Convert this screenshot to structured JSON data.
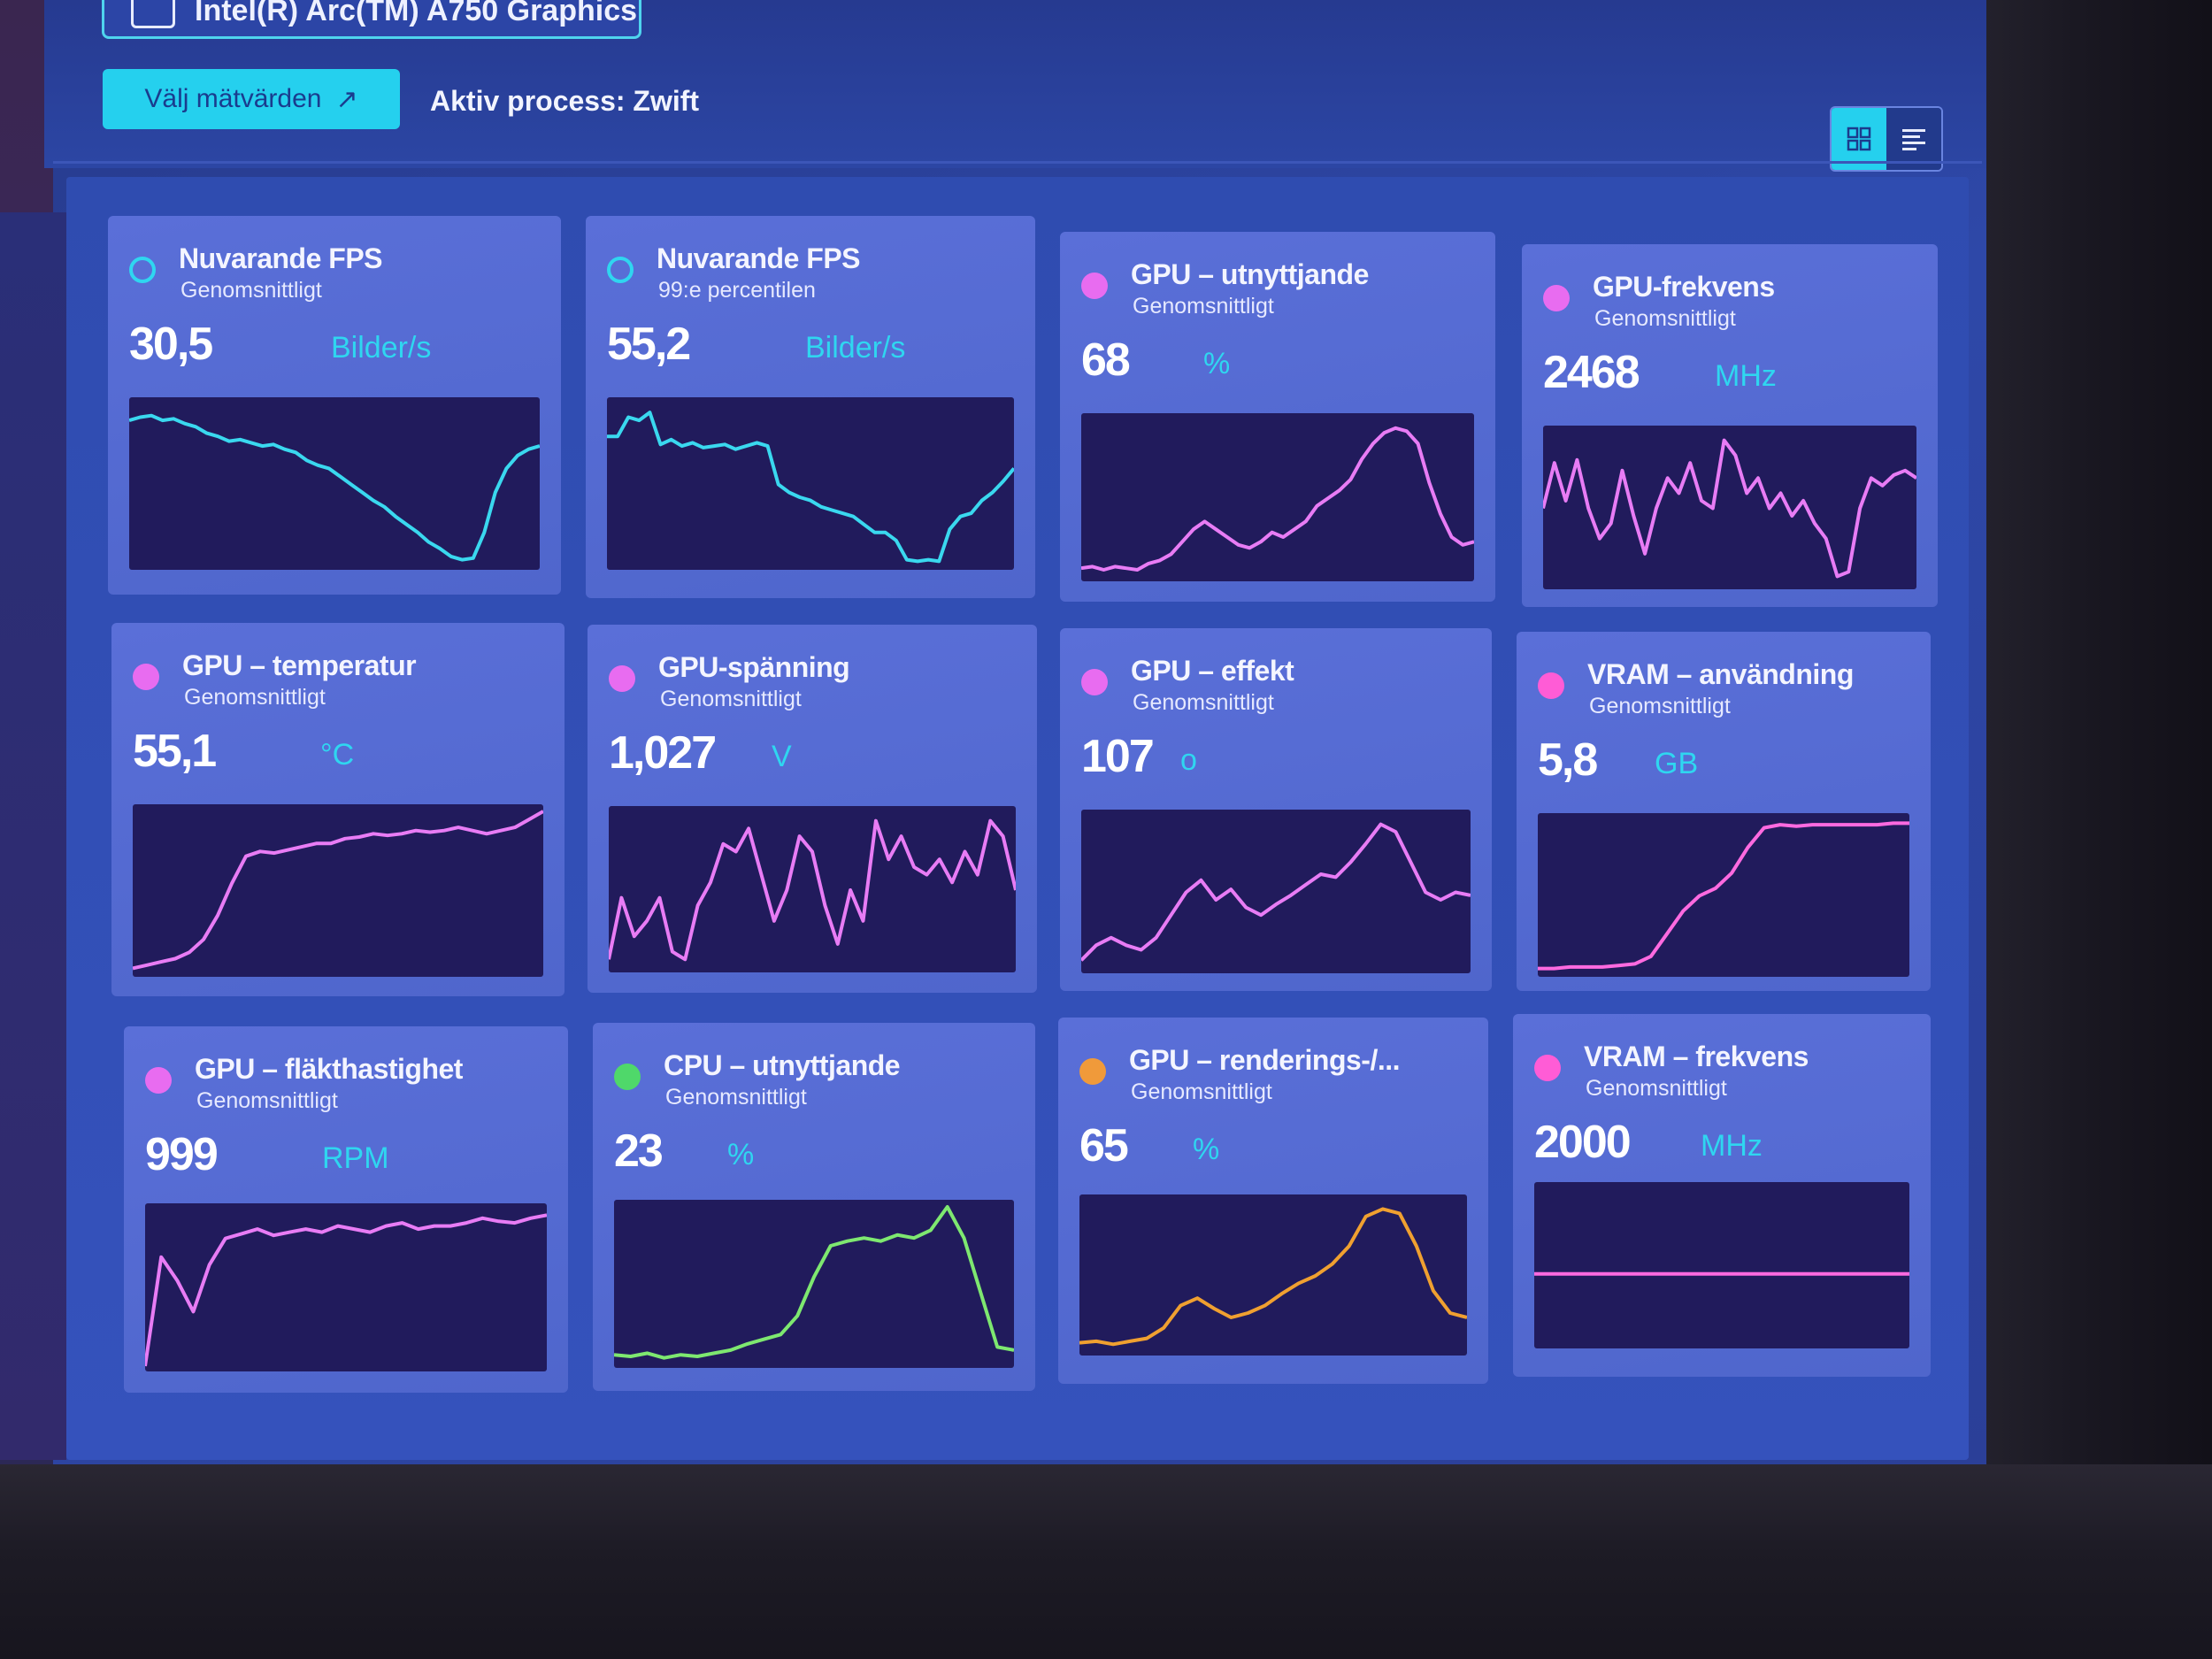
{
  "device": {
    "name": "Intel(R) Arc(TM) A750 Graphics",
    "icon": "chip-icon"
  },
  "toolbar": {
    "select_label": "Välj mätvärden",
    "select_icon": "trend-icon",
    "active_process_label": "Aktiv process:",
    "active_process_value": "Zwift",
    "view_grid_icon": "grid-icon",
    "view_list_icon": "list-icon"
  },
  "colors": {
    "accent": "#25d0ee",
    "gpu": "#e86cf0",
    "cpu": "#5ee06a",
    "render": "#f0a030",
    "plot_bg": "#211b5c"
  },
  "cards": [
    {
      "title": "Nuvarande FPS",
      "sub": "Genomsnittligt",
      "value": "30,5",
      "unit": "Bilder/s",
      "dot_color": "#2fd6f0",
      "dot_style": "ring",
      "line_color": "#3ad8ef",
      "series": [
        0.9,
        0.92,
        0.93,
        0.9,
        0.91,
        0.88,
        0.86,
        0.82,
        0.8,
        0.77,
        0.78,
        0.76,
        0.74,
        0.75,
        0.72,
        0.7,
        0.65,
        0.62,
        0.6,
        0.55,
        0.5,
        0.45,
        0.4,
        0.36,
        0.3,
        0.25,
        0.2,
        0.14,
        0.1,
        0.05,
        0.03,
        0.04,
        0.2,
        0.45,
        0.6,
        0.68,
        0.72,
        0.74
      ]
    },
    {
      "title": "Nuvarande FPS",
      "sub": "99:e percentilen",
      "value": "55,2",
      "unit": "Bilder/s",
      "dot_color": "#2fd6f0",
      "dot_style": "ring",
      "line_color": "#3ad8ef",
      "series": [
        0.8,
        0.8,
        0.92,
        0.9,
        0.95,
        0.75,
        0.78,
        0.74,
        0.76,
        0.73,
        0.74,
        0.75,
        0.72,
        0.74,
        0.76,
        0.74,
        0.5,
        0.45,
        0.42,
        0.4,
        0.36,
        0.34,
        0.32,
        0.3,
        0.25,
        0.2,
        0.2,
        0.15,
        0.03,
        0.02,
        0.03,
        0.02,
        0.22,
        0.3,
        0.32,
        0.4,
        0.45,
        0.52,
        0.6
      ]
    },
    {
      "title": "GPU – utnyttjande",
      "sub": "Genomsnittligt",
      "value": "68",
      "unit": "%",
      "dot_color": "#e86cf0",
      "dot_style": "filled",
      "line_color": "#e87cf5",
      "series": [
        0.05,
        0.06,
        0.04,
        0.06,
        0.05,
        0.04,
        0.08,
        0.1,
        0.14,
        0.22,
        0.3,
        0.35,
        0.3,
        0.25,
        0.2,
        0.18,
        0.22,
        0.28,
        0.25,
        0.3,
        0.35,
        0.45,
        0.5,
        0.55,
        0.62,
        0.75,
        0.85,
        0.92,
        0.95,
        0.93,
        0.85,
        0.6,
        0.4,
        0.25,
        0.2,
        0.22
      ]
    },
    {
      "title": "GPU-frekvens",
      "sub": "Genomsnittligt",
      "value": "2468",
      "unit": "MHz",
      "dot_color": "#e86cf0",
      "dot_style": "filled",
      "line_color": "#e87cf5",
      "series": [
        0.5,
        0.8,
        0.55,
        0.82,
        0.5,
        0.3,
        0.4,
        0.75,
        0.45,
        0.2,
        0.5,
        0.7,
        0.6,
        0.8,
        0.55,
        0.5,
        0.95,
        0.85,
        0.6,
        0.7,
        0.5,
        0.6,
        0.45,
        0.55,
        0.4,
        0.3,
        0.05,
        0.08,
        0.5,
        0.7,
        0.65,
        0.72,
        0.75,
        0.7
      ]
    },
    {
      "title": "GPU – temperatur",
      "sub": "Genomsnittligt",
      "value": "55,1",
      "unit": "°C",
      "dot_color": "#e86cf0",
      "dot_style": "filled",
      "line_color": "#e87cf5",
      "series": [
        0.02,
        0.04,
        0.06,
        0.08,
        0.12,
        0.2,
        0.35,
        0.55,
        0.72,
        0.75,
        0.74,
        0.76,
        0.78,
        0.8,
        0.8,
        0.83,
        0.84,
        0.86,
        0.85,
        0.86,
        0.88,
        0.87,
        0.88,
        0.9,
        0.88,
        0.86,
        0.88,
        0.9,
        0.95,
        1.0
      ]
    },
    {
      "title": "GPU-spänning",
      "sub": "Genomsnittligt",
      "value": "1,027",
      "unit": "V",
      "dot_color": "#e86cf0",
      "dot_style": "filled",
      "line_color": "#e87cf5",
      "series": [
        0.05,
        0.45,
        0.2,
        0.3,
        0.45,
        0.1,
        0.05,
        0.4,
        0.55,
        0.8,
        0.75,
        0.9,
        0.6,
        0.3,
        0.5,
        0.85,
        0.75,
        0.4,
        0.15,
        0.5,
        0.3,
        0.95,
        0.7,
        0.85,
        0.65,
        0.6,
        0.7,
        0.55,
        0.75,
        0.6,
        0.95,
        0.85,
        0.5
      ]
    },
    {
      "title": "GPU – effekt",
      "sub": "Genomsnittligt",
      "value": "107",
      "unit": "o",
      "dot_color": "#e86cf0",
      "dot_style": "filled",
      "line_color": "#e87cf5",
      "series": [
        0.05,
        0.15,
        0.2,
        0.15,
        0.12,
        0.2,
        0.35,
        0.5,
        0.58,
        0.45,
        0.52,
        0.4,
        0.35,
        0.42,
        0.48,
        0.55,
        0.62,
        0.6,
        0.7,
        0.82,
        0.95,
        0.9,
        0.7,
        0.5,
        0.45,
        0.5,
        0.48
      ]
    },
    {
      "title": "VRAM – användning",
      "sub": "Genomsnittligt",
      "value": "5,8",
      "unit": "GB",
      "dot_color": "#ff5cd6",
      "dot_style": "filled",
      "line_color": "#ff6ae0",
      "series": [
        0.02,
        0.02,
        0.03,
        0.03,
        0.03,
        0.04,
        0.05,
        0.1,
        0.25,
        0.4,
        0.5,
        0.55,
        0.65,
        0.82,
        0.95,
        0.97,
        0.96,
        0.97,
        0.97,
        0.97,
        0.97,
        0.97,
        0.98,
        0.98
      ]
    },
    {
      "title": "GPU – fläkthastighet",
      "sub": "Genomsnittligt",
      "value": "999",
      "unit": "RPM",
      "dot_color": "#e86cf0",
      "dot_style": "filled",
      "line_color": "#e87cf5",
      "series": [
        0.0,
        0.7,
        0.55,
        0.35,
        0.65,
        0.82,
        0.85,
        0.88,
        0.84,
        0.86,
        0.88,
        0.86,
        0.9,
        0.88,
        0.86,
        0.9,
        0.92,
        0.88,
        0.9,
        0.9,
        0.92,
        0.95,
        0.93,
        0.92,
        0.95,
        0.97
      ]
    },
    {
      "title": "CPU – utnyttjande",
      "sub": "Genomsnittligt",
      "value": "23",
      "unit": "%",
      "dot_color": "#4fd86a",
      "dot_style": "filled",
      "line_color": "#7ee870",
      "series": [
        0.05,
        0.04,
        0.06,
        0.03,
        0.05,
        0.04,
        0.06,
        0.08,
        0.12,
        0.15,
        0.18,
        0.3,
        0.55,
        0.75,
        0.78,
        0.8,
        0.78,
        0.82,
        0.8,
        0.85,
        1.0,
        0.8,
        0.45,
        0.1,
        0.08
      ]
    },
    {
      "title": "GPU – renderings-/...",
      "sub": "Genomsnittligt",
      "value": "65",
      "unit": "%",
      "dot_color": "#f09a3a",
      "dot_style": "filled",
      "line_color": "#f0a030",
      "series": [
        0.05,
        0.06,
        0.04,
        0.06,
        0.08,
        0.15,
        0.3,
        0.35,
        0.28,
        0.22,
        0.25,
        0.3,
        0.38,
        0.45,
        0.5,
        0.58,
        0.7,
        0.9,
        0.95,
        0.92,
        0.7,
        0.4,
        0.25,
        0.22
      ]
    },
    {
      "title": "VRAM – frekvens",
      "sub": "Genomsnittligt",
      "value": "2000",
      "unit": "MHz",
      "dot_color": "#ff5cd6",
      "dot_style": "filled",
      "line_color": "#ff6ae0",
      "series": [
        0.45,
        0.45,
        0.45,
        0.45,
        0.45,
        0.45
      ]
    }
  ]
}
